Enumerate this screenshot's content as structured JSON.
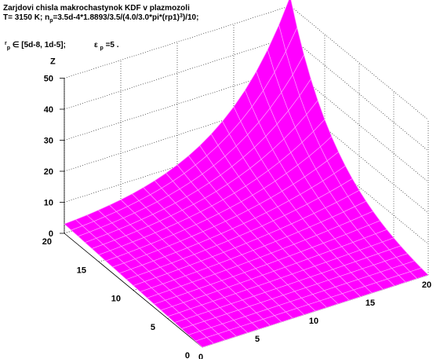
{
  "header": {
    "title": "Zarjdovi chisla makrochastynok KDF v plazmozoli",
    "formula_prefix": "T= 3150 K; n",
    "formula_sub": "p",
    "formula_mid": "=3.5d-4*1.8893/3.5/(4.0/3.0*pi*(rp1)",
    "formula_sup": "3",
    "formula_end": ")/10;",
    "range_pre": "r",
    "range_sub": "p",
    "range_text": "∈ [5d-8, 1d-5];",
    "eps_symbol": "ε",
    "eps_sub": "p",
    "eps_text": "=5 ."
  },
  "chart_data": {
    "type": "surface",
    "title": "Zarjdovi chisla makrochastynok KDF v plazmozoli",
    "zlabel": "Z",
    "x_ticks": [
      "0",
      "5",
      "10",
      "15",
      "20"
    ],
    "y_ticks": [
      "0",
      "5",
      "10",
      "15",
      "20"
    ],
    "z_ticks": [
      "0",
      "10",
      "20",
      "30",
      "40",
      "50"
    ],
    "xlim": [
      0,
      20
    ],
    "ylim": [
      0,
      20
    ],
    "zlim": [
      0,
      50
    ],
    "grid": true,
    "surface_color": "#ff00ff",
    "mesh_color": "#ff99ff",
    "z_corner_values": {
      "x0_y0": 0,
      "x20_y0": 0,
      "x0_y20": 3,
      "x20_y20": 53
    },
    "grid_size": 20
  }
}
